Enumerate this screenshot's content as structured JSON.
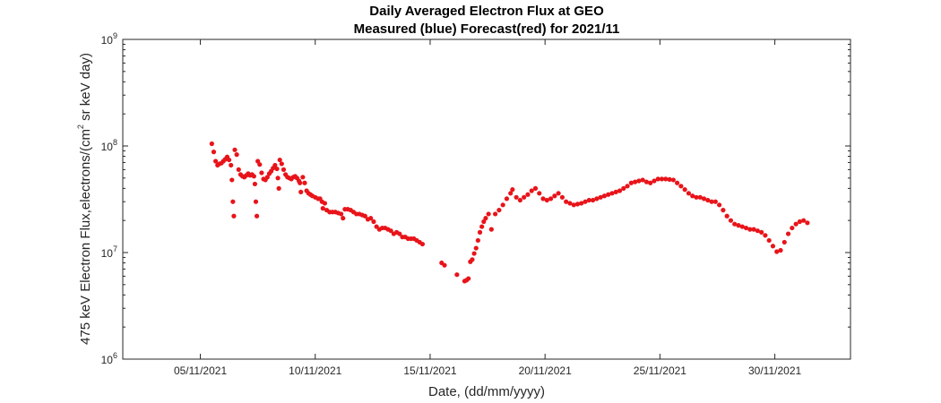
{
  "chart_data": {
    "type": "scatter",
    "title_line1": "Daily Averaged Electron Flux at GEO",
    "title_line2": "Measured (blue) Forecast(red) for 2021/11",
    "xlabel": "Date, (dd/mm/yyyy)",
    "ylabel_main": "475 keV Electron Flux,electrons/(cm",
    "ylabel_sup": "2",
    "ylabel_tail": " sr keV day)",
    "scale_y": "log",
    "ylim": [
      1000000,
      1000000000
    ],
    "xlim": [
      "2021-11-01T15:00",
      "2021-12-03T07:00"
    ],
    "x_ticks": [
      "05/11/2021",
      "10/11/2021",
      "15/11/2021",
      "20/11/2021",
      "25/11/2021",
      "30/11/2021"
    ],
    "y_ticks": [
      {
        "value": 1000000,
        "base": "10",
        "exp": "6"
      },
      {
        "value": 10000000,
        "base": "10",
        "exp": "7"
      },
      {
        "value": 100000000,
        "base": "10",
        "exp": "8"
      },
      {
        "value": 1000000000,
        "base": "10",
        "exp": "9"
      }
    ],
    "grid": false,
    "series": [
      {
        "color": "#e8141a",
        "points": [
          [
            "2021-11-05T12:00",
            105000000.0
          ],
          [
            "2021-11-05T14:00",
            88000000.0
          ],
          [
            "2021-11-05T16:00",
            72000000.0
          ],
          [
            "2021-11-05T18:00",
            66000000.0
          ],
          [
            "2021-11-05T20:00",
            68000000.0
          ],
          [
            "2021-11-05T22:00",
            69000000.0
          ],
          [
            "2021-11-06T00:00",
            72000000.0
          ],
          [
            "2021-11-06T02:00",
            75000000.0
          ],
          [
            "2021-11-06T04:00",
            79000000.0
          ],
          [
            "2021-11-06T06:00",
            74000000.0
          ],
          [
            "2021-11-06T08:00",
            66000000.0
          ],
          [
            "2021-11-06T09:00",
            48000000.0
          ],
          [
            "2021-11-06T10:00",
            30000000.0
          ],
          [
            "2021-11-06T11:00",
            22000000.0
          ],
          [
            "2021-11-06T12:00",
            92000000.0
          ],
          [
            "2021-11-06T14:00",
            83000000.0
          ],
          [
            "2021-11-06T16:00",
            60000000.0
          ],
          [
            "2021-11-06T18:00",
            54000000.0
          ],
          [
            "2021-11-06T20:00",
            52000000.0
          ],
          [
            "2021-11-06T22:00",
            51000000.0
          ],
          [
            "2021-11-07T00:00",
            53000000.0
          ],
          [
            "2021-11-07T02:00",
            55000000.0
          ],
          [
            "2021-11-07T04:00",
            53000000.0
          ],
          [
            "2021-11-07T06:00",
            54000000.0
          ],
          [
            "2021-11-07T08:00",
            52000000.0
          ],
          [
            "2021-11-07T09:00",
            44000000.0
          ],
          [
            "2021-11-07T10:00",
            30000000.0
          ],
          [
            "2021-11-07T11:00",
            22000000.0
          ],
          [
            "2021-11-07T12:00",
            72000000.0
          ],
          [
            "2021-11-07T14:00",
            67000000.0
          ],
          [
            "2021-11-07T16:00",
            56000000.0
          ],
          [
            "2021-11-07T18:00",
            49000000.0
          ],
          [
            "2021-11-07T20:00",
            48000000.0
          ],
          [
            "2021-11-07T22:00",
            51000000.0
          ],
          [
            "2021-11-08T00:00",
            55000000.0
          ],
          [
            "2021-11-08T02:00",
            58000000.0
          ],
          [
            "2021-11-08T04:00",
            62000000.0
          ],
          [
            "2021-11-08T06:00",
            66000000.0
          ],
          [
            "2021-11-08T08:00",
            61000000.0
          ],
          [
            "2021-11-08T09:00",
            50000000.0
          ],
          [
            "2021-11-08T10:00",
            40000000.0
          ],
          [
            "2021-11-08T11:00",
            74000000.0
          ],
          [
            "2021-11-08T13:00",
            68000000.0
          ],
          [
            "2021-11-08T15:00",
            60000000.0
          ],
          [
            "2021-11-08T17:00",
            54000000.0
          ],
          [
            "2021-11-08T19:00",
            51000000.0
          ],
          [
            "2021-11-08T21:00",
            50000000.0
          ],
          [
            "2021-11-08T23:00",
            49000000.0
          ],
          [
            "2021-11-09T01:00",
            51000000.0
          ],
          [
            "2021-11-09T03:00",
            52000000.0
          ],
          [
            "2021-11-09T05:00",
            50000000.0
          ],
          [
            "2021-11-09T07:00",
            47000000.0
          ],
          [
            "2021-11-09T08:00",
            45000000.0
          ],
          [
            "2021-11-09T09:00",
            37000000.0
          ],
          [
            "2021-11-09T11:00",
            51000000.0
          ],
          [
            "2021-11-09T13:00",
            45000000.0
          ],
          [
            "2021-11-09T15:00",
            38000000.0
          ],
          [
            "2021-11-09T17:00",
            36000000.0
          ],
          [
            "2021-11-09T19:00",
            35000000.0
          ],
          [
            "2021-11-09T21:00",
            34000000.0
          ],
          [
            "2021-11-10T00:00",
            33000000.0
          ],
          [
            "2021-11-10T03:00",
            32000000.0
          ],
          [
            "2021-11-10T05:00",
            32000000.0
          ],
          [
            "2021-11-10T07:00",
            30000000.0
          ],
          [
            "2021-11-10T08:00",
            26000000.0
          ],
          [
            "2021-11-10T10:00",
            29000000.0
          ],
          [
            "2021-11-10T12:00",
            25000000.0
          ],
          [
            "2021-11-10T15:00",
            24000000.0
          ],
          [
            "2021-11-10T18:00",
            24000000.0
          ],
          [
            "2021-11-10T21:00",
            24000000.0
          ],
          [
            "2021-11-11T00:00",
            23500000.0
          ],
          [
            "2021-11-11T03:00",
            23000000.0
          ],
          [
            "2021-11-11T05:00",
            21000000.0
          ],
          [
            "2021-11-11T07:00",
            25500000.0
          ],
          [
            "2021-11-11T10:00",
            25500000.0
          ],
          [
            "2021-11-11T13:00",
            25000000.0
          ],
          [
            "2021-11-11T16:00",
            24000000.0
          ],
          [
            "2021-11-11T19:00",
            23000000.0
          ],
          [
            "2021-11-11T22:00",
            23000000.0
          ],
          [
            "2021-11-12T01:00",
            22500000.0
          ],
          [
            "2021-11-12T04:00",
            22000000.0
          ],
          [
            "2021-11-12T07:00",
            20500000.0
          ],
          [
            "2021-11-12T10:00",
            21000000.0
          ],
          [
            "2021-11-12T13:00",
            19500000.0
          ],
          [
            "2021-11-12T16:00",
            17500000.0
          ],
          [
            "2021-11-12T19:00",
            16500000.0
          ],
          [
            "2021-11-12T22:00",
            17000000.0
          ],
          [
            "2021-11-13T01:00",
            17000000.0
          ],
          [
            "2021-11-13T04:00",
            16500000.0
          ],
          [
            "2021-11-13T07:00",
            16000000.0
          ],
          [
            "2021-11-13T10:00",
            15000000.0
          ],
          [
            "2021-11-13T13:00",
            15500000.0
          ],
          [
            "2021-11-13T16:00",
            15000000.0
          ],
          [
            "2021-11-13T19:00",
            14000000.0
          ],
          [
            "2021-11-13T22:00",
            14000000.0
          ],
          [
            "2021-11-14T01:00",
            13500000.0
          ],
          [
            "2021-11-14T04:00",
            13500000.0
          ],
          [
            "2021-11-14T07:00",
            13500000.0
          ],
          [
            "2021-11-14T10:00",
            13000000.0
          ],
          [
            "2021-11-14T13:00",
            12500000.0
          ],
          [
            "2021-11-14T16:00",
            12000000.0
          ],
          [
            "2021-11-15T12:00",
            8000000.0
          ],
          [
            "2021-11-15T15:00",
            7600000.0
          ],
          [
            "2021-11-16T04:00",
            6200000.0
          ],
          [
            "2021-11-16T12:00",
            5400000.0
          ],
          [
            "2021-11-16T14:00",
            5500000.0
          ],
          [
            "2021-11-16T16:00",
            5700000.0
          ],
          [
            "2021-11-16T18:00",
            8200000.0
          ],
          [
            "2021-11-16T20:00",
            8600000.0
          ],
          [
            "2021-11-16T22:00",
            9800000.0
          ],
          [
            "2021-11-17T00:00",
            11000000.0
          ],
          [
            "2021-11-17T02:00",
            13000000.0
          ],
          [
            "2021-11-17T04:00",
            15500000.0
          ],
          [
            "2021-11-17T06:00",
            17500000.0
          ],
          [
            "2021-11-17T08:00",
            19500000.0
          ],
          [
            "2021-11-17T10:00",
            21000000.0
          ],
          [
            "2021-11-17T13:00",
            23000000.0
          ],
          [
            "2021-11-17T16:00",
            16500000.0
          ],
          [
            "2021-11-17T20:00",
            23000000.0
          ],
          [
            "2021-11-18T00:00",
            25000000.0
          ],
          [
            "2021-11-18T04:00",
            28000000.0
          ],
          [
            "2021-11-18T08:00",
            32000000.0
          ],
          [
            "2021-11-18T12:00",
            36000000.0
          ],
          [
            "2021-11-18T14:00",
            39000000.0
          ],
          [
            "2021-11-18T18:00",
            33000000.0
          ],
          [
            "2021-11-18T22:00",
            31000000.0
          ],
          [
            "2021-11-19T02:00",
            33000000.0
          ],
          [
            "2021-11-19T06:00",
            35000000.0
          ],
          [
            "2021-11-19T10:00",
            38000000.0
          ],
          [
            "2021-11-19T14:00",
            40000000.0
          ],
          [
            "2021-11-19T18:00",
            36000000.0
          ],
          [
            "2021-11-19T22:00",
            32000000.0
          ],
          [
            "2021-11-20T02:00",
            31000000.0
          ],
          [
            "2021-11-20T06:00",
            32000000.0
          ],
          [
            "2021-11-20T10:00",
            34000000.0
          ],
          [
            "2021-11-20T14:00",
            36000000.0
          ],
          [
            "2021-11-20T18:00",
            33000000.0
          ],
          [
            "2021-11-20T22:00",
            30000000.0
          ],
          [
            "2021-11-21T02:00",
            29000000.0
          ],
          [
            "2021-11-21T06:00",
            28000000.0
          ],
          [
            "2021-11-21T10:00",
            28500000.0
          ],
          [
            "2021-11-21T14:00",
            29000000.0
          ],
          [
            "2021-11-21T18:00",
            30000000.0
          ],
          [
            "2021-11-21T22:00",
            31000000.0
          ],
          [
            "2021-11-22T02:00",
            31000000.0
          ],
          [
            "2021-11-22T06:00",
            32000000.0
          ],
          [
            "2021-11-22T10:00",
            33000000.0
          ],
          [
            "2021-11-22T14:00",
            34000000.0
          ],
          [
            "2021-11-22T18:00",
            35000000.0
          ],
          [
            "2021-11-22T22:00",
            36000000.0
          ],
          [
            "2021-11-23T02:00",
            37000000.0
          ],
          [
            "2021-11-23T06:00",
            38000000.0
          ],
          [
            "2021-11-23T10:00",
            40000000.0
          ],
          [
            "2021-11-23T14:00",
            42000000.0
          ],
          [
            "2021-11-23T18:00",
            45000000.0
          ],
          [
            "2021-11-23T22:00",
            46000000.0
          ],
          [
            "2021-11-24T02:00",
            47000000.0
          ],
          [
            "2021-11-24T06:00",
            48000000.0
          ],
          [
            "2021-11-24T10:00",
            46000000.0
          ],
          [
            "2021-11-24T14:00",
            45000000.0
          ],
          [
            "2021-11-24T18:00",
            47000000.0
          ],
          [
            "2021-11-24T22:00",
            49000000.0
          ],
          [
            "2021-11-25T02:00",
            49000000.0
          ],
          [
            "2021-11-25T06:00",
            49000000.0
          ],
          [
            "2021-11-25T10:00",
            48500000.0
          ],
          [
            "2021-11-25T14:00",
            48000000.0
          ],
          [
            "2021-11-25T18:00",
            45000000.0
          ],
          [
            "2021-11-25T22:00",
            42000000.0
          ],
          [
            "2021-11-26T02:00",
            39000000.0
          ],
          [
            "2021-11-26T06:00",
            36000000.0
          ],
          [
            "2021-11-26T10:00",
            34000000.0
          ],
          [
            "2021-11-26T14:00",
            33000000.0
          ],
          [
            "2021-11-26T18:00",
            33000000.0
          ],
          [
            "2021-11-26T22:00",
            32000000.0
          ],
          [
            "2021-11-27T02:00",
            31000000.0
          ],
          [
            "2021-11-27T06:00",
            30000000.0
          ],
          [
            "2021-11-27T10:00",
            30000000.0
          ],
          [
            "2021-11-27T14:00",
            28000000.0
          ],
          [
            "2021-11-27T18:00",
            25000000.0
          ],
          [
            "2021-11-27T22:00",
            22000000.0
          ],
          [
            "2021-11-28T02:00",
            20000000.0
          ],
          [
            "2021-11-28T06:00",
            18500000.0
          ],
          [
            "2021-11-28T10:00",
            18000000.0
          ],
          [
            "2021-11-28T14:00",
            17500000.0
          ],
          [
            "2021-11-28T18:00",
            17000000.0
          ],
          [
            "2021-11-28T22:00",
            16500000.0
          ],
          [
            "2021-11-29T02:00",
            16500000.0
          ],
          [
            "2021-11-29T06:00",
            16000000.0
          ],
          [
            "2021-11-29T10:00",
            15500000.0
          ],
          [
            "2021-11-29T14:00",
            14500000.0
          ],
          [
            "2021-11-29T18:00",
            13000000.0
          ],
          [
            "2021-11-29T22:00",
            11500000.0
          ],
          [
            "2021-11-30T02:00",
            10200000.0
          ],
          [
            "2021-11-30T06:00",
            10500000.0
          ],
          [
            "2021-11-30T10:00",
            12500000.0
          ],
          [
            "2021-11-30T14:00",
            15000000.0
          ],
          [
            "2021-11-30T18:00",
            17000000.0
          ],
          [
            "2021-11-30T22:00",
            18500000.0
          ],
          [
            "2021-12-01T02:00",
            19500000.0
          ],
          [
            "2021-12-01T06:00",
            20000000.0
          ],
          [
            "2021-12-01T10:00",
            19000000.0
          ]
        ]
      }
    ]
  }
}
